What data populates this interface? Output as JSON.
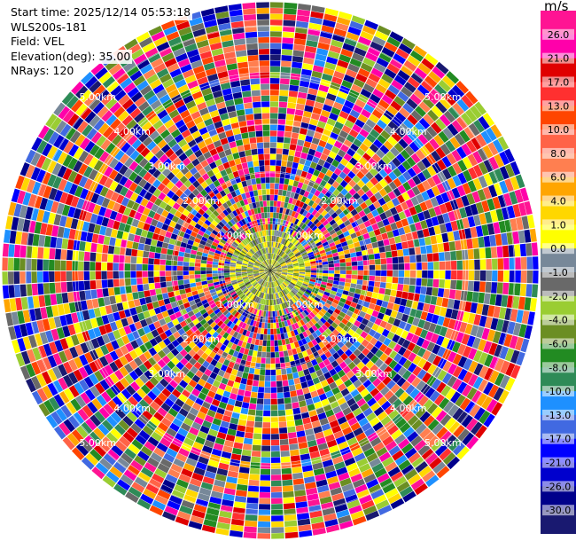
{
  "header": {
    "start_time": "Start time: 2025/12/14 05:53:18",
    "instrument": "WLS200s-181",
    "field": "Field: VEL",
    "elevation": "Elevation(deg): 35.00",
    "nrays": "NRays: 120"
  },
  "chart_data": {
    "type": "heatmap",
    "projection": "polar-ppi",
    "nrays": 120,
    "range_rings_km": [
      1.0,
      2.0,
      3.0,
      4.0,
      5.0
    ],
    "range_ring_labels": [
      "1.00km",
      "2.00km",
      "3.00km",
      "4.00km",
      "5.00km"
    ],
    "max_range_km": 5.5,
    "colorbar": {
      "unit": "m/s",
      "levels": [
        26.0,
        21.0,
        17.0,
        13.0,
        10.0,
        8.0,
        6.0,
        4.0,
        1.0,
        0.0,
        -1.0,
        -2.0,
        -4.0,
        -6.0,
        -8.0,
        -10.0,
        -13.0,
        -17.0,
        -21.0,
        -26.0,
        -30.0
      ],
      "tick_labels": [
        "26.0",
        "21.0",
        "17.0",
        "13.0",
        "10.0",
        "8.0",
        "6.0",
        "4.0",
        "1.0",
        "0.0",
        "-1.0",
        "-2.0",
        "-4.0",
        "-6.0",
        "-8.0",
        "-10.0",
        "-13.0",
        "-17.0",
        "-21.0",
        "-26.0",
        "-30.0"
      ],
      "colors": [
        "#ff1493",
        "#ff00aa",
        "#e00000",
        "#ff3030",
        "#ff4500",
        "#ff6347",
        "#ff7f50",
        "#ffa500",
        "#ffd700",
        "#ffff00",
        "#778899",
        "#696969",
        "#9acd32",
        "#6b8e23",
        "#228b22",
        "#2e8b57",
        "#1e90ff",
        "#4169e1",
        "#0000ff",
        "#0000cd",
        "#00008b",
        "#191970"
      ]
    },
    "texture": {
      "inner_colors": [
        "#9acd32",
        "#6b8e23",
        "#778899",
        "#ffff00",
        "#ffd700",
        "#696969",
        "#9acd32"
      ],
      "inner_radius_km": 1.0
    }
  }
}
